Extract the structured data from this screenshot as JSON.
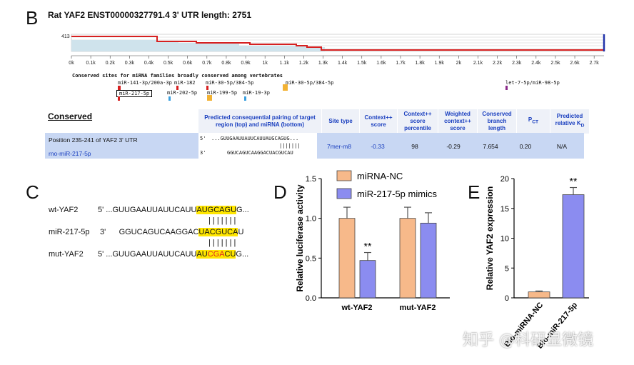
{
  "panelB": {
    "letter": "B",
    "header": "Rat YAF2  ENST00000327791.4   3' UTR length: 2751",
    "y_max_label": "413",
    "axis_ticks": [
      "0k",
      "0.1k",
      "0.2k",
      "0.3k",
      "0.4k",
      "0.5k",
      "0.6k",
      "0.7k",
      "0.8k",
      "0.9k",
      "1k",
      "1.1k",
      "1.2k",
      "1.3k",
      "1.4k",
      "1.5k",
      "1.6k",
      "1.7k",
      "1.8k",
      "1.9k",
      "2k",
      "2.1k",
      "2.2k",
      "2.3k",
      "2.4k",
      "2.5k",
      "2.6k",
      "2.7k"
    ],
    "conserved_title": "Conserved sites for miRNA families broadly conserved among vertebrates",
    "site_labels": [
      "miR-141-3p/200a-3p",
      "miR-182",
      "miR-30-5p/384-5p",
      "miR-30-5p/384-5p",
      "let-7-5p/miR-98-5p",
      "miR-217-5p",
      "miR-202-5p",
      "miR-199-5p",
      "miR-19-3p"
    ],
    "table": {
      "section": "Conserved",
      "headers": [
        "Predicted consequential pairing of target region (top) and miRNA (bottom)",
        "Site type",
        "Context++ score",
        "Context++ score percentile",
        "Weighted context++ score",
        "Conserved branch length",
        "PCT",
        "Predicted relative KD"
      ],
      "row_position": "Position 235-241 of YAF2 3' UTR",
      "row_mirna": "rno-miR-217-5p",
      "seq_top_prefix": "5'",
      "seq_top": "...GUUGAAUUAUUCAUUAUGCAGUG...",
      "seq_pipes": "|||||||",
      "seq_bottom_prefix": "3'",
      "seq_bottom": "GGUCAGUCAAGGACUACGUCAU",
      "site_type": "7mer-m8",
      "context_score": "-0.33",
      "percentile": "98",
      "weighted": "-0.29",
      "branch_length": "7.654",
      "pct": "0.20",
      "kd": "N/A"
    }
  },
  "panelC": {
    "letter": "C",
    "wt_label": "wt-YAF2",
    "wt_prefix": "5' ...GUUGAAUUAUUCAUU",
    "wt_seed": "AUGCAGU",
    "wt_suffix": "G...",
    "pipes": "| | | | | | |",
    "mir_label": "miR-217-5p",
    "mir_prefix_num": "3'",
    "mir_prefix": "GGUCAGUCAAGGAC",
    "mir_seed": "UACGUCA",
    "mir_suffix": "U",
    "mut_label": "mut-YAF2",
    "mut_prefix": "5' ...GUUGAAUUAUUCAUU",
    "mut_seed_a": "AU",
    "mut_seed_b": "CGA",
    "mut_seed_c": "CU",
    "mut_suffix": "G..."
  },
  "panelD": {
    "letter": "D"
  },
  "panelE": {
    "letter": "E"
  },
  "watermark": "知乎 @科研显微镜",
  "colors": {
    "nc": "#f7b98a",
    "mimic": "#8b8cf0",
    "cons_bg": "#c8d7f3",
    "utr_red": "#d62020",
    "utr_fill": "#cfe3ec"
  },
  "chart_data": [
    {
      "type": "bar",
      "panel": "D",
      "categories": [
        "wt-YAF2",
        "mut-YAF2"
      ],
      "series": [
        {
          "name": "miRNA-NC",
          "values": [
            1.0,
            1.0
          ],
          "errors": [
            0.14,
            0.14
          ]
        },
        {
          "name": "miR-217-5p mimics",
          "values": [
            0.47,
            0.94
          ],
          "errors": [
            0.1,
            0.13
          ]
        }
      ],
      "ylabel": "Relative luciferase activity",
      "ylim": [
        0,
        1.5
      ],
      "yticks": [
        "0.0",
        "0.5",
        "1.0",
        "1.5"
      ],
      "annotations": [
        "**"
      ],
      "legend": "top"
    },
    {
      "type": "bar",
      "panel": "E",
      "categories": [
        "Bio-miRNA-NC",
        "Bio-miR-217-5p"
      ],
      "values": [
        1.0,
        17.3
      ],
      "errors": [
        0.15,
        1.2
      ],
      "ylabel": "Relative YAF2 expression",
      "ylim": [
        0,
        20
      ],
      "yticks": [
        "0",
        "5",
        "10",
        "15",
        "20"
      ],
      "annotations": [
        "**"
      ]
    }
  ]
}
